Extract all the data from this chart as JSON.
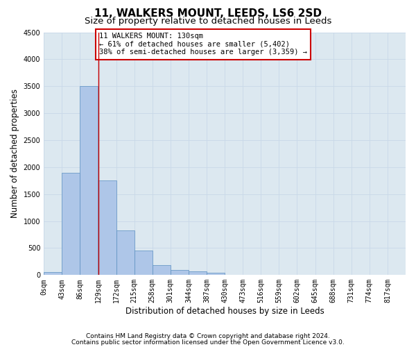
{
  "title": "11, WALKERS MOUNT, LEEDS, LS6 2SD",
  "subtitle": "Size of property relative to detached houses in Leeds",
  "xlabel": "Distribution of detached houses by size in Leeds",
  "ylabel": "Number of detached properties",
  "footnote1": "Contains HM Land Registry data © Crown copyright and database right 2024.",
  "footnote2": "Contains public sector information licensed under the Open Government Licence v3.0.",
  "annotation_line1": "11 WALKERS MOUNT: 130sqm",
  "annotation_line2": "← 61% of detached houses are smaller (5,402)",
  "annotation_line3": "38% of semi-detached houses are larger (3,359) →",
  "property_size": 130,
  "bin_edges": [
    0,
    43,
    86,
    129,
    172,
    215,
    258,
    301,
    344,
    387,
    430,
    473,
    516,
    559,
    602,
    645,
    688,
    731,
    774,
    817,
    860
  ],
  "bar_heights": [
    50,
    1900,
    3500,
    1750,
    830,
    460,
    185,
    100,
    75,
    45,
    0,
    0,
    0,
    0,
    0,
    0,
    0,
    0,
    0,
    0
  ],
  "bar_color": "#aec6e8",
  "bar_edge_color": "#5a8fc0",
  "vline_color": "#cc0000",
  "vline_x": 130,
  "annotation_box_color": "#cc0000",
  "annotation_box_facecolor": "white",
  "ylim": [
    0,
    4500
  ],
  "yticks": [
    0,
    500,
    1000,
    1500,
    2000,
    2500,
    3000,
    3500,
    4000,
    4500
  ],
  "grid_color": "#c8d8e8",
  "bg_color": "#dce8f0",
  "title_fontsize": 11,
  "subtitle_fontsize": 9.5,
  "axis_label_fontsize": 8.5,
  "tick_fontsize": 7,
  "annotation_fontsize": 7.5,
  "footnote_fontsize": 6.5
}
